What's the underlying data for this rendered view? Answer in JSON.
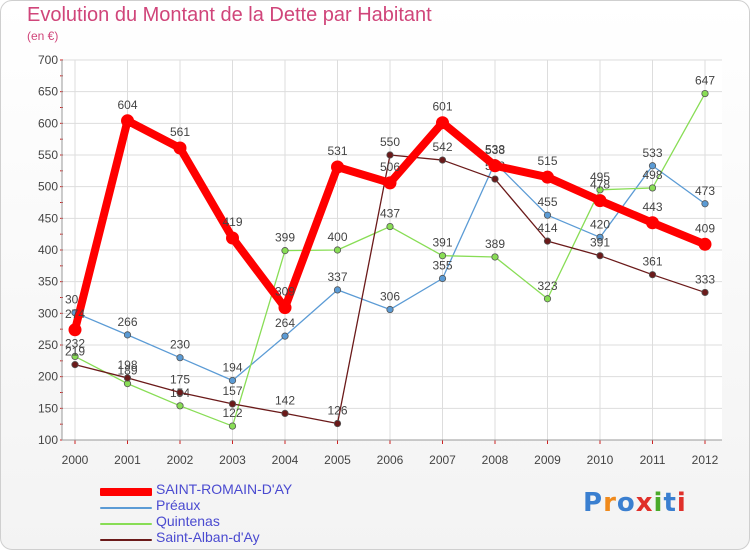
{
  "title": "Evolution du Montant de la Dette par Habitant",
  "subtitle": "(en €)",
  "logo_text": "Proxiti",
  "chart_data": {
    "type": "line",
    "title": "Evolution du Montant de la Dette par Habitant",
    "subtitle": "(en €)",
    "xlabel": "",
    "ylabel": "",
    "categories": [
      "2000",
      "2001",
      "2002",
      "2003",
      "2004",
      "2005",
      "2006",
      "2007",
      "2008",
      "2009",
      "2010",
      "2011",
      "2012"
    ],
    "ylim": [
      100,
      700
    ],
    "yticks": [
      100,
      150,
      200,
      250,
      300,
      350,
      400,
      450,
      500,
      550,
      600,
      650,
      700
    ],
    "grid": true,
    "legend_position": "bottom-left",
    "series": [
      {
        "name": "SAINT-ROMAIN-D'AY",
        "color": "#ff0000",
        "emphasis": true,
        "values": [
          274,
          604,
          561,
          419,
          309,
          531,
          506,
          601,
          533,
          515,
          478,
          443,
          409
        ]
      },
      {
        "name": "Préaux",
        "color": "#5b9bd5",
        "values": [
          301,
          266,
          230,
          194,
          264,
          337,
          306,
          355,
          538,
          455,
          420,
          533,
          473
        ]
      },
      {
        "name": "Quintenas",
        "color": "#88dd55",
        "values": [
          232,
          189,
          154,
          122,
          399,
          400,
          437,
          391,
          389,
          323,
          495,
          498,
          647
        ]
      },
      {
        "name": "Saint-Alban-d'Ay",
        "color": "#6b1a1a",
        "values": [
          219,
          198,
          175,
          157,
          142,
          126,
          550,
          542,
          512,
          414,
          391,
          361,
          333
        ]
      }
    ]
  }
}
